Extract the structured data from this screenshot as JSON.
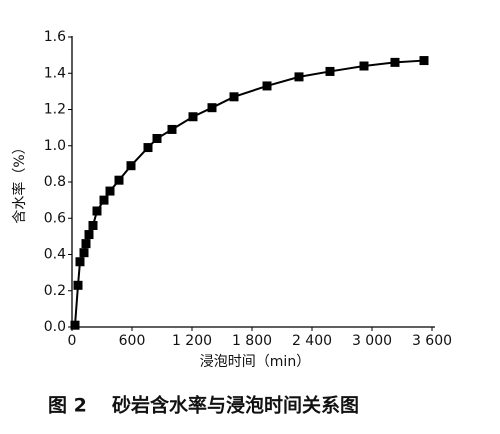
{
  "chart_data": {
    "type": "line",
    "figure_label": "图 2",
    "title": "砂岩含水率与浸泡时间关系图",
    "x_label": "浸泡时间（min）",
    "y_label": "含水率（%）",
    "x": [
      30,
      60,
      80,
      120,
      140,
      170,
      210,
      250,
      320,
      380,
      470,
      590,
      760,
      850,
      1000,
      1210,
      1400,
      1620,
      1950,
      2270,
      2580,
      2920,
      3230,
      3520
    ],
    "series": [
      {
        "color": "#000000",
        "values": [
          0.01,
          0.23,
          0.36,
          0.41,
          0.46,
          0.51,
          0.56,
          0.64,
          0.7,
          0.75,
          0.81,
          0.89,
          0.99,
          1.04,
          1.09,
          1.16,
          1.21,
          1.27,
          1.33,
          1.38,
          1.41,
          1.44,
          1.46,
          1.47
        ]
      }
    ],
    "xlim": [
      0,
      3600
    ],
    "xticks": [
      0,
      600,
      {
        "value": 1200,
        "label": "1 200"
      },
      {
        "value": 1800,
        "label": "1 800"
      },
      {
        "value": 2400,
        "label": "2 400"
      },
      {
        "value": 3000,
        "label": "3 000"
      },
      {
        "value": 3600,
        "label": "3 600"
      }
    ],
    "ylim": [
      0,
      1.6
    ],
    "yticks": [
      {
        "value": 0,
        "label": "0.0"
      },
      {
        "value": 0.2,
        "label": "0.2"
      },
      {
        "value": 0.4,
        "label": "0.4"
      },
      {
        "value": 0.6,
        "label": "0.6"
      },
      {
        "value": 0.8,
        "label": "0.8"
      },
      {
        "value": 1,
        "label": "1.0"
      },
      {
        "value": 1.2,
        "label": "1.2"
      },
      {
        "value": 1.4,
        "label": "1.4"
      },
      {
        "value": 1.6,
        "label": "1.6"
      }
    ],
    "grid": false
  }
}
